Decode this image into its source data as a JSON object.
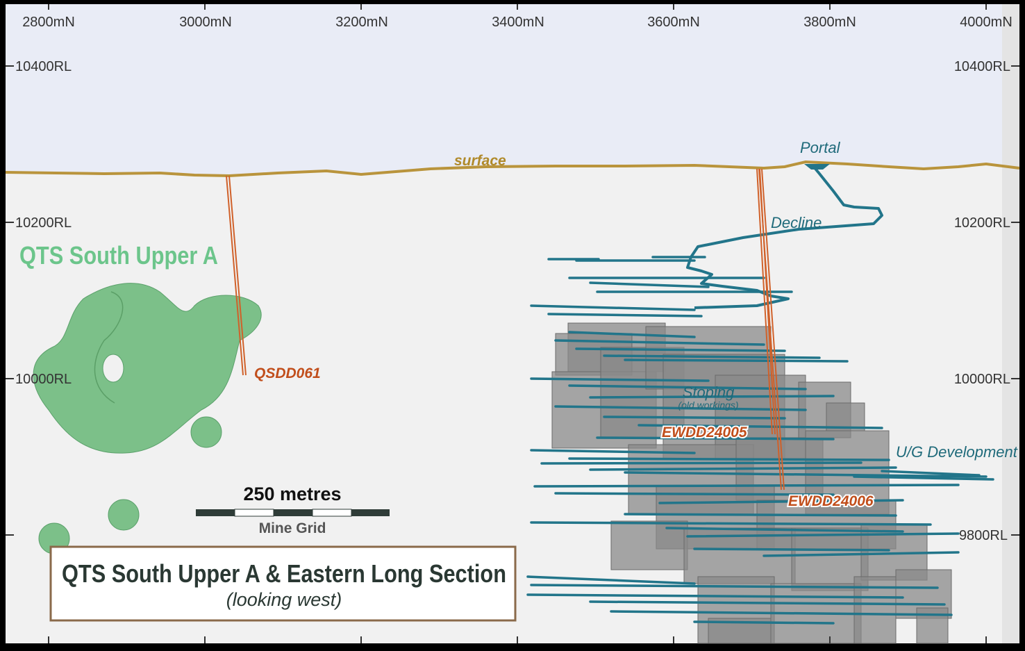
{
  "section": {
    "title": "QTS South Upper A & Eastern Long Section",
    "subtitle": "(looking west)"
  },
  "northing_axis": {
    "ticks": [
      "2800mN",
      "3000mN",
      "3200mN",
      "3400mN",
      "3600mN",
      "3800mN",
      "4000mN"
    ]
  },
  "rl_axis": {
    "left_ticks": [
      "10400RL",
      "10200RL",
      "10000RL"
    ],
    "right_ticks": [
      "10400RL",
      "10200RL",
      "10000RL",
      "9800RL"
    ]
  },
  "features": {
    "surface": "surface",
    "portal": "Portal",
    "decline": "Decline",
    "stoping": "Stoping",
    "stoping_note": "(old workings)",
    "ug_development": "U/G Development"
  },
  "drillholes": [
    "QSDD061",
    "EWDD24005",
    "EWDD24006"
  ],
  "zone": {
    "name": "QTS South Upper A"
  },
  "scale_bar": {
    "distance": "250 metres",
    "grid": "Mine Grid"
  },
  "colors": {
    "sky": "#e9ecf6",
    "ground": "#f1f1f1",
    "surface_line": "#b9943c",
    "orebody": "#7cc089",
    "workings": "#22758a",
    "stopes": "#8a8a8a",
    "drillhole": "#d0612a",
    "title_border": "#8a6a4a",
    "frame": "#000000"
  }
}
